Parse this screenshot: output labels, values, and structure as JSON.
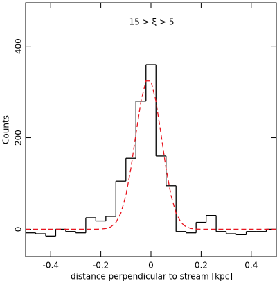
{
  "chart_data": {
    "type": "histogram",
    "title": "15 > ξ > 5",
    "xlabel": "distance perpendicular to stream [kpc]",
    "ylabel": "Counts",
    "bins": [
      -0.5,
      -0.46,
      -0.42,
      -0.38,
      -0.34,
      -0.3,
      -0.26,
      -0.22,
      -0.18,
      -0.14,
      -0.1,
      -0.06,
      -0.02,
      0.02,
      0.06,
      0.1,
      0.14,
      0.18,
      0.22,
      0.26,
      0.3,
      0.34,
      0.38,
      0.42,
      0.46,
      0.5
    ],
    "counts": [
      -8,
      -10,
      -15,
      0,
      -5,
      -8,
      25,
      18,
      28,
      105,
      155,
      280,
      360,
      160,
      95,
      -5,
      -8,
      15,
      30,
      -5,
      -10,
      -12,
      -5,
      -5,
      0
    ],
    "color": "#000000",
    "fit": {
      "x": [
        -0.5,
        -0.22,
        -0.2,
        -0.18,
        -0.16,
        -0.14,
        -0.12,
        -0.1,
        -0.08,
        -0.06,
        -0.04,
        -0.02,
        0,
        0.02,
        0.04,
        0.06,
        0.08,
        0.1,
        0.12,
        0.14,
        0.16,
        0.18,
        0.2,
        0.5
      ],
      "values": [
        0,
        0,
        0.4,
        1.6,
        5.1,
        14.5,
        35.2,
        73.8,
        133.3,
        207.9,
        279.5,
        324,
        324,
        279.5,
        207.9,
        133.3,
        73.8,
        35.2,
        14.5,
        5.1,
        1.6,
        0.4,
        0,
        0
      ],
      "color": "#e8141e"
    },
    "xlim": [
      -0.5,
      0.5
    ],
    "ylim": [
      -60,
      495
    ],
    "xticks": [
      -0.4,
      -0.2,
      0,
      0.2,
      0.4
    ],
    "yticks": [
      0,
      200,
      400
    ]
  }
}
